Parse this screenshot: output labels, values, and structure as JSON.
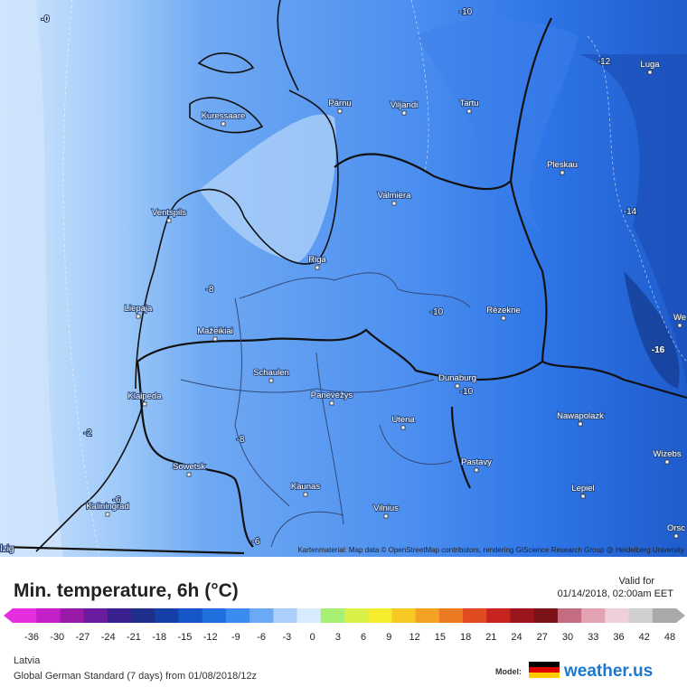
{
  "map": {
    "cities": [
      "Kuressaare",
      "Pärnu",
      "Viljandi",
      "Tartu",
      "Luga",
      "Pleskau",
      "Ventspils",
      "Valmiera",
      "Riga",
      "Liepaja",
      "Rēzekne",
      "Mažeikiai",
      "Schaulen",
      "Panevėžys",
      "Dunaburg",
      "Klaipeda",
      "Nawapolazk",
      "Utena",
      "Wizebs",
      "Sowetsk",
      "Pastavy",
      "Kaunas",
      "Lepiel",
      "Kaliningrad",
      "Vilnius",
      "Orsc",
      "We"
    ],
    "isolines": [
      "-0",
      "-10",
      "-12",
      "-14",
      "-8",
      "-10",
      "-10",
      "-16",
      "-2",
      "-8",
      "-6",
      "-6",
      "lzig"
    ],
    "attribution": "Kartenmaterial: Map data © OpenStreetMap contributors, rendering GIScience Research Group @ Heidelberg University"
  },
  "legend": {
    "title": "Min. temperature, 6h (°C)",
    "valid_label": "Valid for",
    "valid_time": "01/14/2018, 02:00am EET",
    "ticks": [
      -36,
      -30,
      -27,
      -24,
      -21,
      -18,
      -15,
      -12,
      -9,
      -6,
      -3,
      0,
      3,
      6,
      9,
      12,
      15,
      18,
      21,
      24,
      27,
      30,
      33,
      36,
      42,
      48
    ],
    "colors": [
      "#e52ee0",
      "#c41fc8",
      "#9a1aa8",
      "#6a1ca0",
      "#3a208f",
      "#1e2f8c",
      "#1540a8",
      "#1557c8",
      "#2270e0",
      "#3a8cf0",
      "#6aaaf5",
      "#a9cffa",
      "#d9ecfd",
      "#a6ee74",
      "#d8f048",
      "#f6ec2e",
      "#f8c824",
      "#f3a223",
      "#ec7a22",
      "#e04c20",
      "#c8241f",
      "#9a151c",
      "#7a1218",
      "#c46d80",
      "#e2a3b2",
      "#efd0d8",
      "#cfcfcf",
      "#a9a9a9"
    ]
  },
  "footer": {
    "region": "Latvia",
    "model_run": "Global German Standard (7 days) from 01/08/2018/12z",
    "model_label": "Model:",
    "brand": "weather.us"
  }
}
